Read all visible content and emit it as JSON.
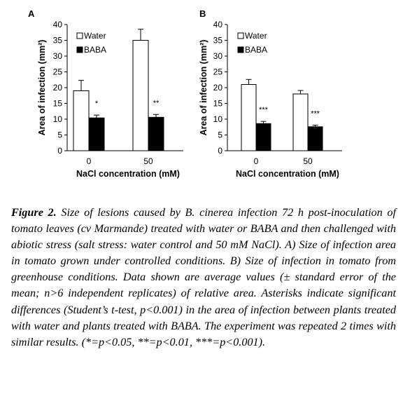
{
  "chart_data": [
    {
      "type": "bar",
      "panel": "A",
      "categories": [
        "0",
        "50"
      ],
      "series": [
        {
          "name": "Water",
          "values": [
            19,
            35
          ],
          "errors": [
            3.3,
            3.5
          ]
        },
        {
          "name": "BABA",
          "values": [
            10.4,
            10.6
          ],
          "errors": [
            0.9,
            0.9
          ]
        }
      ],
      "significance": [
        "*",
        "**"
      ],
      "xlabel": "NaCl concentration (mM)",
      "ylabel": "Area of infection (mm²)",
      "ylim": [
        0,
        40
      ],
      "yticks": [
        0,
        5,
        10,
        15,
        20,
        25,
        30,
        35,
        40
      ],
      "legend": "top-left"
    },
    {
      "type": "bar",
      "panel": "B",
      "categories": [
        "0",
        "50"
      ],
      "series": [
        {
          "name": "Water",
          "values": [
            21,
            18
          ],
          "errors": [
            1.6,
            1.1
          ]
        },
        {
          "name": "BABA",
          "values": [
            8.6,
            7.6
          ],
          "errors": [
            0.7,
            0.5
          ]
        }
      ],
      "significance": [
        "***",
        "***"
      ],
      "xlabel": "NaCl concentration (mM)",
      "ylabel": "Area of infection (mm²)",
      "ylim": [
        0,
        40
      ],
      "yticks": [
        0,
        5,
        10,
        15,
        20,
        25,
        30,
        35,
        40
      ],
      "legend": "top-left"
    }
  ],
  "caption": {
    "label": "Figure 2.",
    "text": "Size of lesions caused by B. cinerea infection 72 h post-inoculation of tomato leaves (cv Marmande) treated with water or BABA and then challenged with abiotic stress (salt stress: water control and 50 mM NaCl). A) Size of infection area in tomato grown under controlled conditions. B) Size of infection in tomato from greenhouse conditions. Data shown are average values (± standard error of the mean; n>6 independent replicates) of relative area. Asterisks indicate significant differences (Student’s t-test, p<0.001) in the area of infection between plants treated with water and plants treated with BABA. The experiment was repeated 2 times with similar results. (*=p<0.05, **=p<0.01, ***=p<0.001)."
  },
  "colors": {
    "water": "#ffffff",
    "baba": "#000000",
    "axis": "#000000"
  }
}
